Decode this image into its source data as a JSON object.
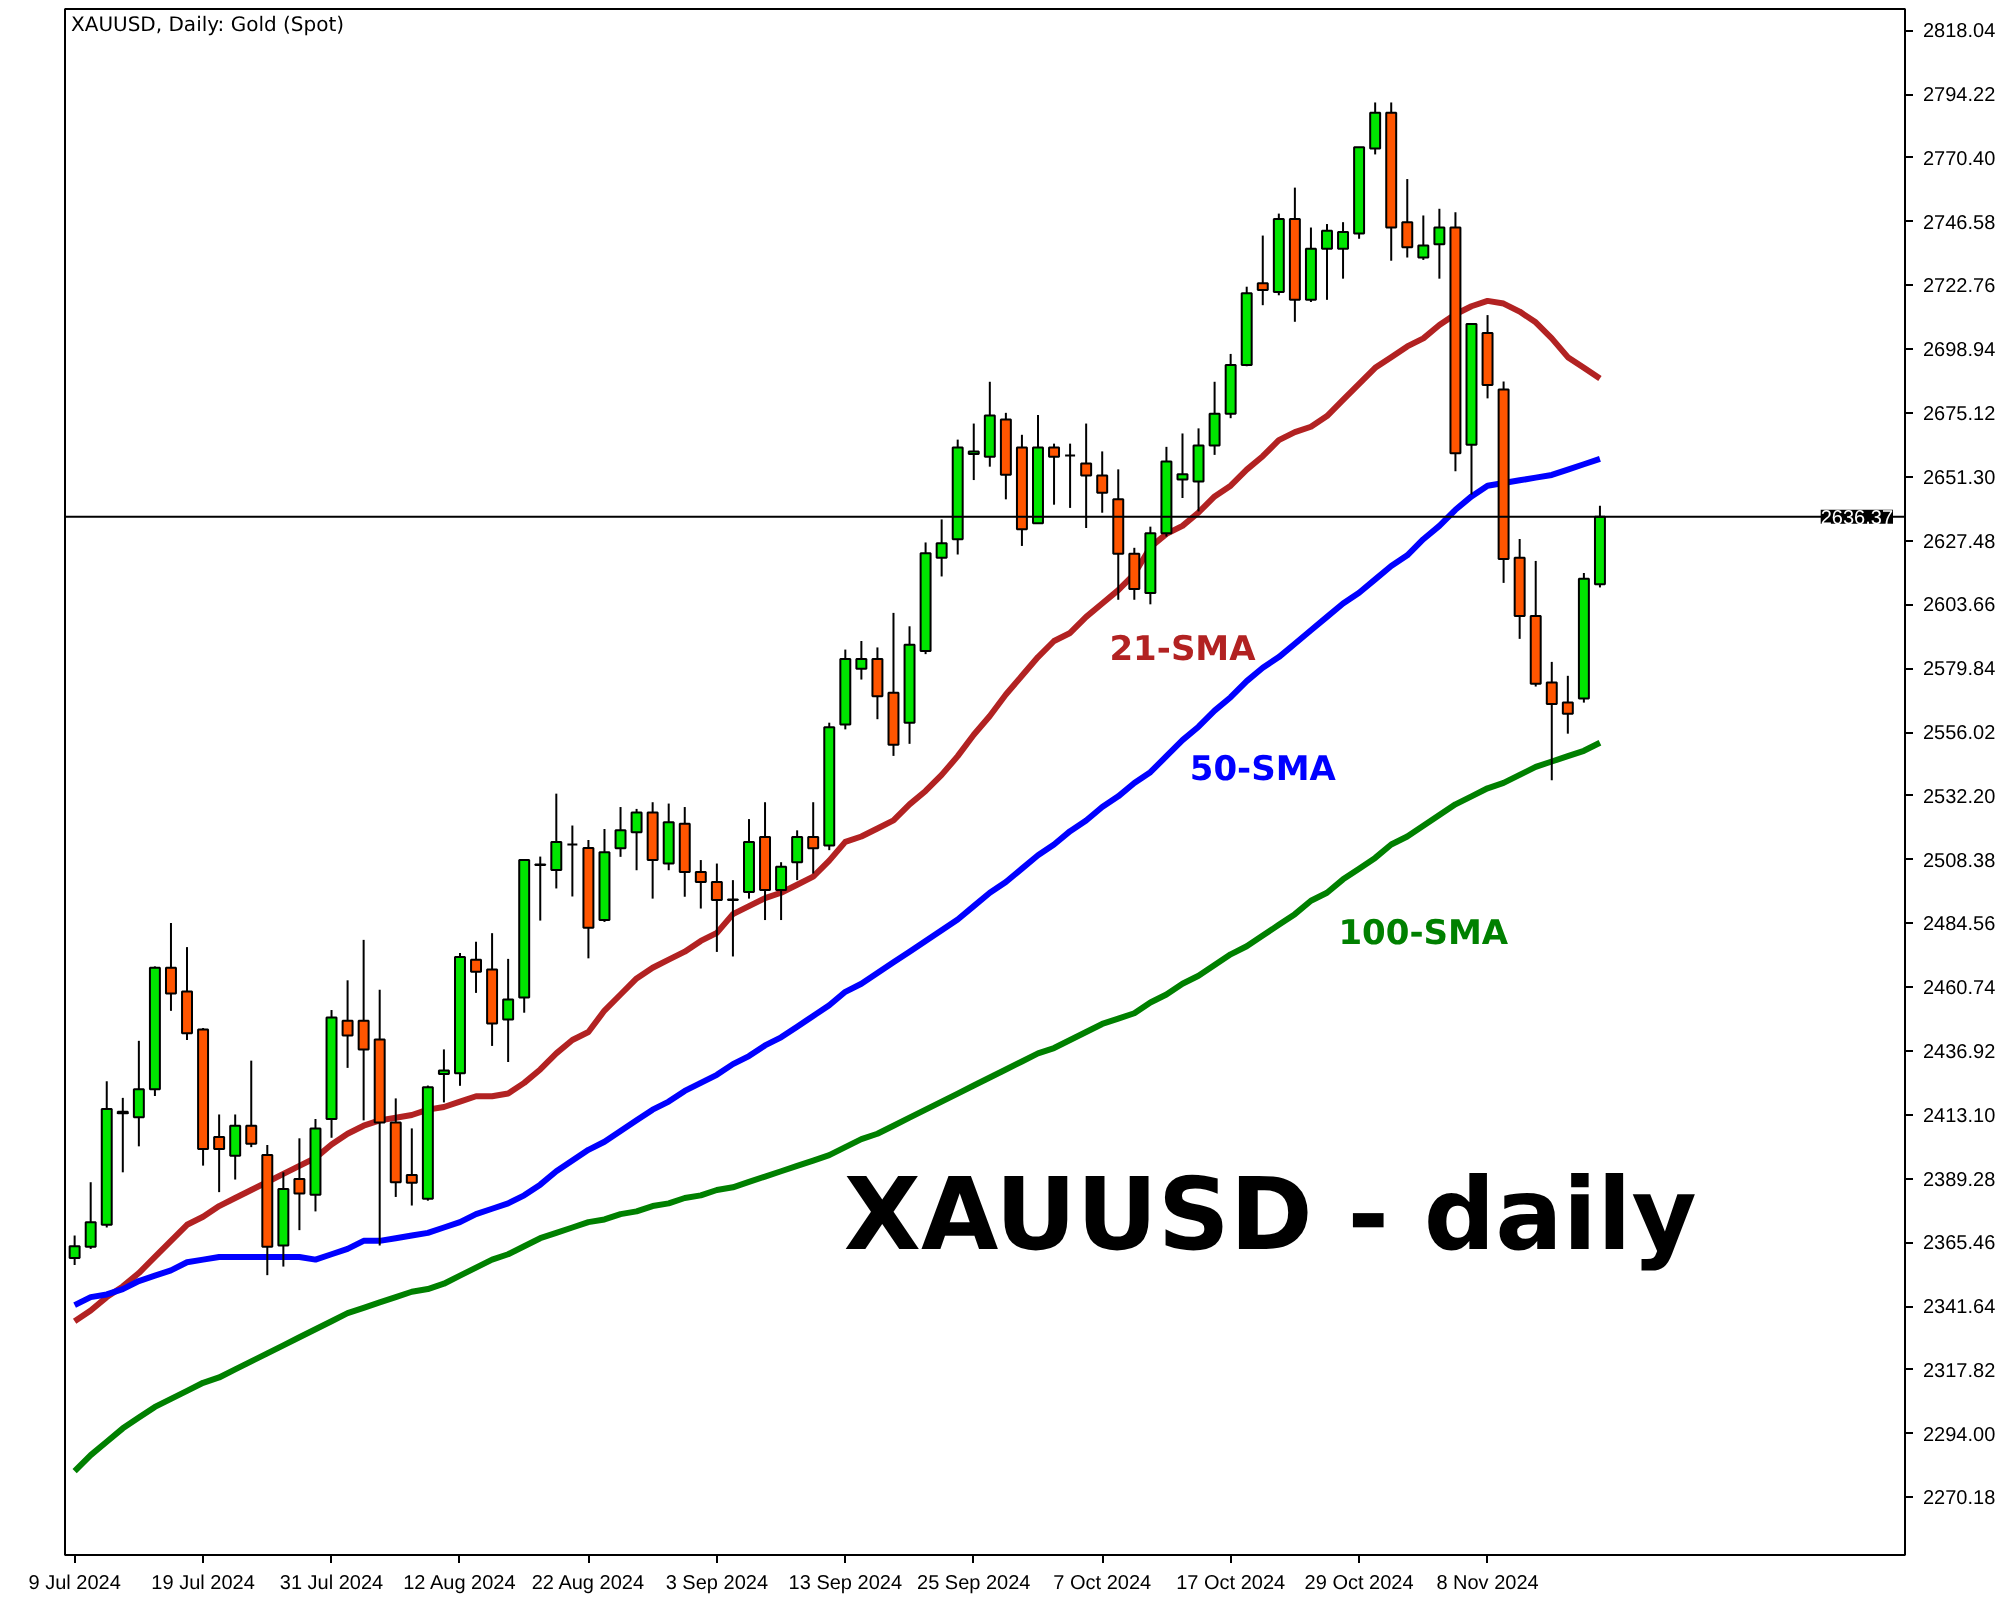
{
  "chart_data": {
    "type": "candlestick",
    "title": "XAUUSD, Daily: Gold (Spot)",
    "categories": [
      "9 Jul 2024",
      null,
      null,
      null,
      null,
      null,
      null,
      null,
      "19 Jul 2024",
      null,
      null,
      null,
      null,
      null,
      null,
      null,
      "31 Jul 2024",
      null,
      null,
      null,
      null,
      null,
      null,
      null,
      "12 Aug 2024",
      null,
      null,
      null,
      null,
      null,
      null,
      null,
      "22 Aug 2024",
      null,
      null,
      null,
      null,
      null,
      null,
      null,
      "3 Sep 2024",
      null,
      null,
      null,
      null,
      null,
      null,
      null,
      "13 Sep 2024",
      null,
      null,
      null,
      null,
      null,
      null,
      null,
      "25 Sep 2024",
      null,
      null,
      null,
      null,
      null,
      null,
      null,
      "7 Oct 2024",
      null,
      null,
      null,
      null,
      null,
      null,
      null,
      "17 Oct 2024",
      null,
      null,
      null,
      null,
      null,
      null,
      null,
      "29 Oct 2024",
      null,
      null,
      null,
      null,
      null,
      null,
      null,
      "8 Nov 2024",
      null,
      null,
      null,
      null,
      null,
      null,
      null
    ],
    "ohlc": [
      [
        2359.6,
        2368.0,
        2357.0,
        2364.0
      ],
      [
        2363.8,
        2387.9,
        2363.0,
        2373.0
      ],
      [
        2372.0,
        2425.6,
        2371.0,
        2415.2
      ],
      [
        2413.7,
        2419.4,
        2391.6,
        2414.2
      ],
      [
        2412.2,
        2440.7,
        2401.3,
        2422.6
      ],
      [
        2422.6,
        2468.5,
        2420.1,
        2468.0
      ],
      [
        2468.0,
        2484.7,
        2451.9,
        2458.4
      ],
      [
        2459.1,
        2475.7,
        2441.0,
        2443.5
      ],
      [
        2444.9,
        2445.5,
        2394.1,
        2400.3
      ],
      [
        2404.8,
        2413.2,
        2384.2,
        2400.3
      ],
      [
        2397.8,
        2413.2,
        2388.9,
        2409.0
      ],
      [
        2409.0,
        2433.3,
        2401.0,
        2402.3
      ],
      [
        2398.1,
        2401.8,
        2353.2,
        2363.8
      ],
      [
        2364.3,
        2391.6,
        2356.4,
        2385.4
      ],
      [
        2389.1,
        2404.3,
        2370.0,
        2383.7
      ],
      [
        2383.2,
        2411.5,
        2377.0,
        2408.0
      ],
      [
        2411.5,
        2452.2,
        2404.5,
        2449.4
      ],
      [
        2448.2,
        2463.3,
        2430.6,
        2442.7
      ],
      [
        2448.2,
        2478.4,
        2411.0,
        2437.5
      ],
      [
        2441.2,
        2459.8,
        2364.3,
        2410.2
      ],
      [
        2410.2,
        2419.2,
        2382.4,
        2387.9
      ],
      [
        2390.6,
        2408.0,
        2379.2,
        2387.7
      ],
      [
        2381.7,
        2424.0,
        2381.0,
        2423.4
      ],
      [
        2428.3,
        2437.5,
        2417.7,
        2429.6
      ],
      [
        2428.6,
        2473.5,
        2423.9,
        2472.0
      ],
      [
        2471.0,
        2477.7,
        2458.6,
        2466.5
      ],
      [
        2467.3,
        2480.9,
        2438.8,
        2447.2
      ],
      [
        2448.7,
        2471.3,
        2432.8,
        2456.1
      ],
      [
        2456.9,
        2508.2,
        2451.2,
        2508.2
      ],
      [
        2506.4,
        2509.5,
        2485.6,
        2506.5
      ],
      [
        2504.5,
        2533.0,
        2497.6,
        2514.9
      ],
      [
        2514.0,
        2521.1,
        2494.6,
        2514.0
      ],
      [
        2512.7,
        2515.7,
        2471.5,
        2482.9
      ],
      [
        2485.8,
        2519.8,
        2485.1,
        2511.1
      ],
      [
        2512.6,
        2528.0,
        2509.4,
        2519.3
      ],
      [
        2518.6,
        2527.3,
        2504.4,
        2526.0
      ],
      [
        2526.0,
        2529.8,
        2493.8,
        2508.2
      ],
      [
        2506.9,
        2529.3,
        2504.4,
        2522.3
      ],
      [
        2521.8,
        2528.0,
        2494.5,
        2503.7
      ],
      [
        2503.7,
        2508.2,
        2490.1,
        2500.0
      ],
      [
        2500.0,
        2506.9,
        2473.9,
        2493.3
      ],
      [
        2493.3,
        2500.7,
        2472.2,
        2493.5
      ],
      [
        2496.3,
        2523.5,
        2493.8,
        2514.9
      ],
      [
        2516.8,
        2529.8,
        2485.8,
        2497.0
      ],
      [
        2497.0,
        2507.4,
        2485.8,
        2505.7
      ],
      [
        2507.4,
        2519.3,
        2500.7,
        2516.8
      ],
      [
        2516.8,
        2529.8,
        2503.2,
        2512.6
      ],
      [
        2513.6,
        2559.5,
        2511.9,
        2557.8
      ],
      [
        2558.8,
        2586.8,
        2557.0,
        2583.3
      ],
      [
        2579.6,
        2590.0,
        2575.6,
        2583.3
      ],
      [
        2583.3,
        2587.6,
        2560.8,
        2569.4
      ],
      [
        2570.7,
        2600.5,
        2547.1,
        2551.3
      ],
      [
        2559.5,
        2595.5,
        2551.6,
        2588.6
      ],
      [
        2586.3,
        2626.8,
        2585.1,
        2622.8
      ],
      [
        2621.1,
        2635.4,
        2614.1,
        2626.5
      ],
      [
        2628.0,
        2665.2,
        2622.3,
        2662.3
      ],
      [
        2659.8,
        2671.2,
        2650.1,
        2660.8
      ],
      [
        2658.8,
        2686.8,
        2655.1,
        2674.2
      ],
      [
        2672.7,
        2675.2,
        2642.9,
        2652.1
      ],
      [
        2662.3,
        2667.0,
        2625.5,
        2631.7
      ],
      [
        2634.0,
        2674.4,
        2633.9,
        2662.3
      ],
      [
        2662.3,
        2663.7,
        2640.9,
        2658.8
      ],
      [
        2659.3,
        2663.7,
        2639.7,
        2659.3
      ],
      [
        2656.3,
        2671.2,
        2632.2,
        2651.8
      ],
      [
        2651.8,
        2660.8,
        2637.9,
        2645.4
      ],
      [
        2642.9,
        2654.1,
        2605.4,
        2622.6
      ],
      [
        2622.6,
        2624.8,
        2605.4,
        2609.4
      ],
      [
        2607.9,
        2632.7,
        2603.7,
        2630.2
      ],
      [
        2630.2,
        2662.5,
        2629.0,
        2657.0
      ],
      [
        2650.3,
        2667.5,
        2643.4,
        2652.3
      ],
      [
        2649.6,
        2669.4,
        2638.4,
        2663.0
      ],
      [
        2663.0,
        2686.8,
        2659.5,
        2674.9
      ],
      [
        2674.9,
        2697.2,
        2673.2,
        2693.1
      ],
      [
        2693.1,
        2722.3,
        2692.6,
        2719.9
      ],
      [
        2723.6,
        2741.4,
        2715.4,
        2721.1
      ],
      [
        2720.3,
        2749.6,
        2719.1,
        2747.6
      ],
      [
        2747.6,
        2759.3,
        2709.2,
        2717.4
      ],
      [
        2717.4,
        2744.4,
        2716.6,
        2736.5
      ],
      [
        2736.5,
        2745.7,
        2717.4,
        2743.2
      ],
      [
        2736.5,
        2746.4,
        2725.3,
        2742.7
      ],
      [
        2742.2,
        2774.4,
        2740.2,
        2774.4
      ],
      [
        2773.9,
        2791.1,
        2771.7,
        2787.3
      ],
      [
        2787.3,
        2791.1,
        2732.0,
        2744.4
      ],
      [
        2746.4,
        2762.5,
        2733.2,
        2737.0
      ],
      [
        2733.2,
        2748.9,
        2732.3,
        2737.7
      ],
      [
        2738.2,
        2751.4,
        2725.3,
        2744.4
      ],
      [
        2744.4,
        2750.1,
        2653.4,
        2660.1
      ],
      [
        2663.3,
        2708.4,
        2644.7,
        2708.4
      ],
      [
        2705.0,
        2711.7,
        2680.6,
        2685.6
      ],
      [
        2683.9,
        2686.9,
        2611.7,
        2620.6
      ],
      [
        2621.1,
        2628.1,
        2590.8,
        2599.3
      ],
      [
        2599.3,
        2619.9,
        2573.0,
        2574.0
      ],
      [
        2574.5,
        2582.2,
        2538.0,
        2566.5
      ],
      [
        2567.0,
        2577.0,
        2555.4,
        2562.8
      ],
      [
        2568.5,
        2615.4,
        2567.0,
        2613.2
      ],
      [
        2611.2,
        2640.5,
        2610.0,
        2636.4
      ]
    ],
    "colors": [
      "#00e600",
      "#00e600",
      "#00e600",
      "#00e600",
      "#00e600",
      "#00e600",
      "#ff5500",
      "#ff5500",
      "#ff5500",
      "#ff5500",
      "#00e600",
      "#ff5500",
      "#ff5500",
      "#00e600",
      "#ff5500",
      "#00e600",
      "#00e600",
      "#ff5500",
      "#ff5500",
      "#ff5500",
      "#ff5500",
      "#ff5500",
      "#00e600",
      "#00e600",
      "#00e600",
      "#ff5500",
      "#ff5500",
      "#00e600",
      "#00e600",
      "#00e600",
      "#00e600",
      "#000000",
      "#ff5500",
      "#00e600",
      "#00e600",
      "#00e600",
      "#ff5500",
      "#00e600",
      "#ff5500",
      "#ff5500",
      "#ff5500",
      "#00e600",
      "#00e600",
      "#ff5500",
      "#00e600",
      "#00e600",
      "#ff5500",
      "#00e600",
      "#00e600",
      "#00e600",
      "#ff5500",
      "#ff5500",
      "#00e600",
      "#00e600",
      "#00e600",
      "#00e600",
      "#00e600",
      "#00e600",
      "#ff5500",
      "#ff5500",
      "#00e600",
      "#ff5500",
      "#000000",
      "#ff5500",
      "#ff5500",
      "#ff5500",
      "#ff5500",
      "#00e600",
      "#00e600",
      "#00e600",
      "#00e600",
      "#00e600",
      "#00e600",
      "#00e600",
      "#ff5500",
      "#00e600",
      "#ff5500",
      "#00e600",
      "#00e600",
      "#00e600",
      "#00e600",
      "#00e600",
      "#ff5500",
      "#ff5500",
      "#00e600",
      "#00e600",
      "#ff5500",
      "#00e600",
      "#ff5500",
      "#ff5500",
      "#ff5500",
      "#ff5500",
      "#ff5500",
      "#ff5500",
      "#00e600",
      "#00e600"
    ],
    "series": [
      {
        "type": "line",
        "name": "21-SMA",
        "color": "#b22222",
        "values": [
          2336,
          2340,
          2345,
          2349,
          2354,
          2360,
          2366,
          2372,
          2375,
          2379,
          2382,
          2385,
          2388,
          2391,
          2394,
          2397,
          2402,
          2406,
          2409,
          2411,
          2412,
          2413,
          2415,
          2416,
          2418,
          2420,
          2420,
          2421,
          2425,
          2430,
          2436,
          2441,
          2444,
          2452,
          2458,
          2464,
          2468,
          2471,
          2474,
          2478,
          2481,
          2488,
          2491,
          2494,
          2496,
          2499,
          2502,
          2508,
          2515,
          2517,
          2520,
          2523,
          2529,
          2534,
          2540,
          2547,
          2555,
          2562,
          2570,
          2577,
          2584,
          2590,
          2593,
          2599,
          2604,
          2609,
          2615,
          2625,
          2630,
          2633,
          2638,
          2644,
          2648,
          2654,
          2659,
          2665,
          2668,
          2670,
          2674,
          2680,
          2686,
          2692,
          2696,
          2700,
          2703,
          2708,
          2712,
          2715,
          2717,
          2716,
          2713,
          2709,
          2703,
          2696,
          2692,
          2688
        ]
      },
      {
        "type": "line",
        "name": "50-SMA",
        "color": "#0000ff",
        "values": [
          2342,
          2345,
          2346,
          2348,
          2351,
          2353,
          2355,
          2358,
          2359,
          2360,
          2360,
          2360,
          2360,
          2360,
          2360,
          2359,
          2361,
          2363,
          2366,
          2366,
          2367,
          2368,
          2369,
          2371,
          2373,
          2376,
          2378,
          2380,
          2383,
          2387,
          2392,
          2396,
          2400,
          2403,
          2407,
          2411,
          2415,
          2418,
          2422,
          2425,
          2428,
          2432,
          2435,
          2439,
          2442,
          2446,
          2450,
          2454,
          2459,
          2462,
          2466,
          2470,
          2474,
          2478,
          2482,
          2486,
          2491,
          2496,
          2500,
          2505,
          2510,
          2514,
          2519,
          2523,
          2528,
          2532,
          2537,
          2541,
          2547,
          2553,
          2558,
          2564,
          2569,
          2575,
          2580,
          2584,
          2589,
          2594,
          2599,
          2604,
          2608,
          2613,
          2618,
          2622,
          2628,
          2633,
          2639,
          2644,
          2648,
          2649,
          2650,
          2651,
          2652,
          2654,
          2656,
          2658
        ]
      },
      {
        "type": "line",
        "name": "100-SMA",
        "color": "#008000",
        "values": [
          2280,
          2286,
          2291,
          2296,
          2300,
          2304,
          2307,
          2310,
          2313,
          2315,
          2318,
          2321,
          2324,
          2327,
          2330,
          2333,
          2336,
          2339,
          2341,
          2343,
          2345,
          2347,
          2348,
          2350,
          2353,
          2356,
          2359,
          2361,
          2364,
          2367,
          2369,
          2371,
          2373,
          2374,
          2376,
          2377,
          2379,
          2380,
          2382,
          2383,
          2385,
          2386,
          2388,
          2390,
          2392,
          2394,
          2396,
          2398,
          2401,
          2404,
          2406,
          2409,
          2412,
          2415,
          2418,
          2421,
          2424,
          2427,
          2430,
          2433,
          2436,
          2438,
          2441,
          2444,
          2447,
          2449,
          2451,
          2455,
          2458,
          2462,
          2465,
          2469,
          2473,
          2476,
          2480,
          2484,
          2488,
          2493,
          2496,
          2501,
          2505,
          2509,
          2514,
          2517,
          2521,
          2525,
          2529,
          2532,
          2535,
          2537,
          2540,
          2543,
          2545,
          2547,
          2549,
          2552
        ]
      }
    ],
    "ylim": [
      2248.7,
      2826.0
    ],
    "yticks": [
      2270.18,
      {
        "value": 2294.0,
        "label": "2294.00"
      },
      2317.82,
      2341.64,
      2365.46,
      2389.28,
      {
        "value": 2413.1,
        "label": "2413.10"
      },
      2436.92,
      2460.74,
      2484.56,
      2508.38,
      {
        "value": 2532.2,
        "label": "2532.20"
      },
      2556.02,
      2579.84,
      2603.66,
      2627.48,
      {
        "value": 2651.3,
        "label": "2651.30"
      },
      2675.12,
      2698.94,
      2722.76,
      2746.58,
      {
        "value": 2770.4,
        "label": "2770.40"
      },
      2794.22,
      2818.04
    ],
    "ref_lines": [
      {
        "axis": "y",
        "value": 2636.37,
        "label": "2636.37",
        "color": "#000000"
      }
    ],
    "annotations": [
      "XAUUSD - daily"
    ]
  }
}
